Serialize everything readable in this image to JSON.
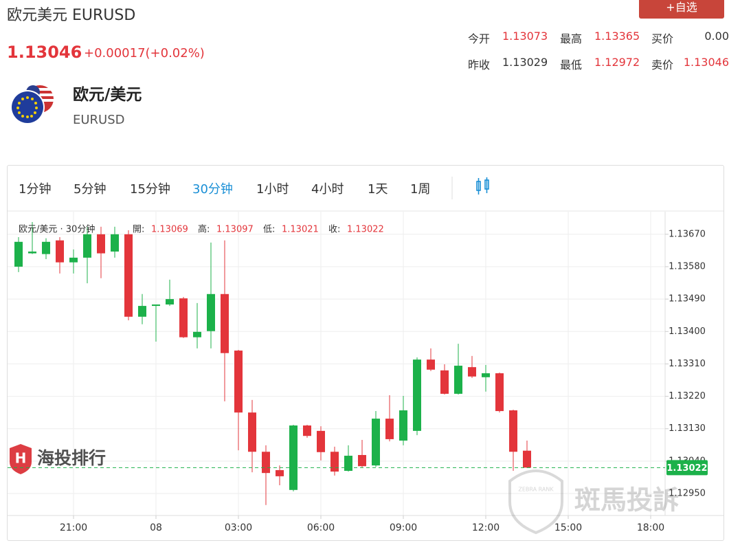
{
  "header": {
    "title": "欧元美元 EURUSD",
    "price": "1.13046",
    "change": "+0.00017(+0.02%)",
    "watch_button": "+自选",
    "quote": [
      [
        {
          "label": "今开",
          "value": "1.13073"
        },
        {
          "label": "最高",
          "value": "1.13365"
        },
        {
          "label": "买价",
          "value": "0.00"
        }
      ],
      [
        {
          "label": "昨收",
          "value": "1.13029"
        },
        {
          "label": "最低",
          "value": "1.12972"
        },
        {
          "label": "卖价",
          "value": "1.13046"
        }
      ]
    ],
    "symbol_name": "欧元/美元",
    "symbol_code": "EURUSD"
  },
  "tabs": [
    "1分钟",
    "5分钟",
    "15分钟",
    "30分钟",
    "1小时",
    "4小时",
    "1天",
    "1周"
  ],
  "watermarks": {
    "left": "海投排行",
    "right": "斑馬投訴",
    "badge": "ZEBRA RANK"
  },
  "chart_data": {
    "type": "candlestick",
    "legend": "欧元/美元 · 30分钟",
    "ohlc_labels": {
      "open": "開:",
      "high": "高:",
      "low": "低:",
      "close": "收:"
    },
    "up_color": "#1cb14a",
    "down_color": "#e3353b",
    "categories": [
      null,
      null,
      null,
      null,
      "21:00",
      null,
      null,
      null,
      null,
      null,
      "08",
      null,
      null,
      null,
      null,
      null,
      "03:00",
      null,
      null,
      null,
      null,
      null,
      "06:00",
      null,
      null,
      null,
      null,
      null,
      "09:00",
      null,
      null,
      null,
      null,
      null,
      "12:00",
      null,
      null,
      null,
      null,
      null,
      "15:00",
      null,
      null,
      null,
      null,
      null,
      "18:00"
    ],
    "open": [
      1.1358,
      1.13617,
      1.13615,
      1.13653,
      1.13592,
      1.13605,
      1.1367,
      1.13622,
      1.1367,
      1.13441,
      1.13471,
      1.13475,
      1.13492,
      1.13384,
      1.13401,
      1.13504,
      1.13347,
      1.13175,
      1.13066,
      1.13015,
      1.1296,
      1.13139,
      1.13124,
      1.13066,
      1.13013,
      1.13057,
      1.13028,
      1.13158,
      1.13097,
      1.13124,
      1.13322,
      1.13292,
      1.13227,
      1.13301,
      1.13273,
      1.13284,
      1.13181,
      1.13069,
      null,
      null,
      null,
      null,
      null,
      null,
      null,
      null,
      null
    ],
    "high": [
      1.13662,
      1.13704,
      1.13659,
      1.13662,
      1.13628,
      1.13691,
      1.13691,
      1.13691,
      1.13681,
      1.13504,
      1.13475,
      1.13544,
      1.13496,
      1.13479,
      1.13647,
      1.13653,
      1.13349,
      1.1321,
      1.13084,
      1.13028,
      1.13141,
      1.13141,
      1.13137,
      1.1308,
      1.13084,
      1.13099,
      1.13179,
      1.13223,
      1.13221,
      1.13328,
      1.13353,
      1.13309,
      1.13366,
      1.13332,
      1.13307,
      1.13286,
      1.13183,
      1.13097,
      null,
      null,
      null,
      null,
      null,
      null,
      null,
      null,
      null
    ],
    "low": [
      1.13565,
      1.13615,
      1.13601,
      1.13561,
      1.13561,
      1.13534,
      1.13548,
      1.13605,
      1.13431,
      1.1342,
      1.13372,
      1.13471,
      1.13382,
      1.13353,
      1.13353,
      1.13206,
      1.1307,
      1.13009,
      1.12918,
      1.12973,
      1.12956,
      1.13105,
      1.13042,
      1.13,
      1.13011,
      1.13023,
      1.13024,
      1.13095,
      1.13084,
      1.13112,
      1.1329,
      1.13225,
      1.13225,
      1.13271,
      1.13233,
      1.13175,
      1.13013,
      1.13021,
      null,
      null,
      null,
      null,
      null,
      null,
      null,
      null,
      null
    ],
    "close": [
      1.13649,
      1.13622,
      1.13649,
      1.13592,
      1.13605,
      1.1367,
      1.13617,
      1.1367,
      1.13441,
      1.13471,
      1.13475,
      1.1349,
      1.13384,
      1.13399,
      1.13504,
      1.1334,
      1.13175,
      1.13066,
      1.13007,
      1.12998,
      1.13139,
      1.1311,
      1.13065,
      1.13011,
      1.13055,
      1.13026,
      1.13158,
      1.13101,
      1.13181,
      1.13322,
      1.13294,
      1.13227,
      1.13305,
      1.13275,
      1.13284,
      1.13179,
      1.13066,
      1.13022,
      null,
      null,
      null,
      null,
      null,
      null,
      null,
      null,
      null
    ],
    "last_price": {
      "value": 1.13022,
      "label": "1.13022"
    },
    "ylim": [
      1.12889,
      1.13725
    ],
    "yticks": [
      {
        "value": 1.1295,
        "label": "1.12950"
      },
      {
        "value": 1.1304,
        "label": "1.13040"
      },
      {
        "value": 1.1313,
        "label": "1.13130"
      },
      {
        "value": 1.1322,
        "label": "1.13220"
      },
      {
        "value": 1.1331,
        "label": "1.13310"
      },
      {
        "value": 1.134,
        "label": "1.13400"
      },
      {
        "value": 1.1349,
        "label": "1.13490"
      },
      {
        "value": 1.1358,
        "label": "1.13580"
      },
      {
        "value": 1.1367,
        "label": "1.13670"
      }
    ],
    "grid": true
  }
}
